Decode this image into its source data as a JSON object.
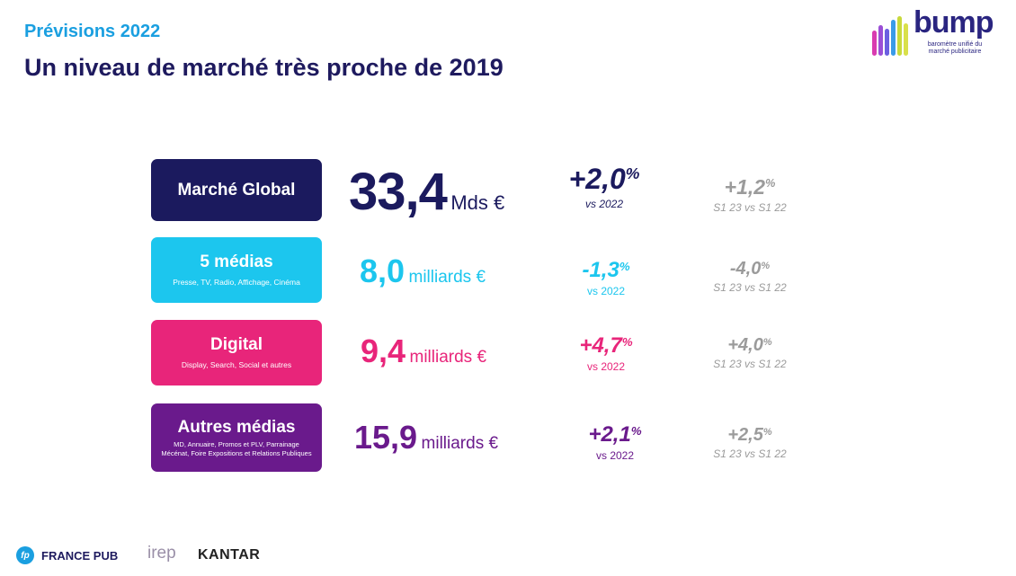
{
  "header": {
    "subtitle": "Prévisions 2022",
    "title": "Un niveau de marché très proche de 2019"
  },
  "logo": {
    "name": "bump",
    "tagline": "baromètre unifié du marché publicitaire",
    "bar_colors": [
      "#d93bb0",
      "#9b4fd6",
      "#6b5fe0",
      "#3a9be8",
      "#c8d93b",
      "#d9e04a"
    ]
  },
  "rows": [
    {
      "label": "Marché Global",
      "sub": "",
      "value": "33,4",
      "unit": "Mds €",
      "growth": "+2,0",
      "growth_sup": "%",
      "growth_ref": "vs 2022",
      "s1": "+1,2",
      "s1_sup": "%",
      "s1_ref": "S1 23 vs S1 22",
      "color": "#1b1a5e"
    },
    {
      "label": "5 médias",
      "sub": "Presse, TV, Radio, Affichage, Cinéma",
      "value": "8,0",
      "unit": "milliards €",
      "growth": "-1,3",
      "growth_sup": "%",
      "growth_ref": "vs 2022",
      "s1": "-4,0",
      "s1_sup": "%",
      "s1_ref": "S1 23 vs S1 22",
      "color": "#1cc6ee"
    },
    {
      "label": "Digital",
      "sub": "Display, Search, Social et autres",
      "value": "9,4",
      "unit": "milliards €",
      "growth": "+4,7",
      "growth_sup": "%",
      "growth_ref": "vs 2022",
      "s1": "+4,0",
      "s1_sup": "%",
      "s1_ref": "S1 23 vs S1 22",
      "color": "#e8257a"
    },
    {
      "label": "Autres médias",
      "sub": "MD, Annuaire, Promos et PLV, Parrainage Mécénat, Foire Expositions et Relations Publiques",
      "value": "15,9",
      "unit": "milliards €",
      "growth": "+2,1",
      "growth_sup": "%",
      "growth_ref": "vs 2022",
      "s1": "+2,5",
      "s1_sup": "%",
      "s1_ref": "S1 23 vs S1 22",
      "color": "#6a1a8c"
    }
  ],
  "footer": {
    "logo1_icon": "fp",
    "logo1": "FRANCE PUB",
    "logo2": "irep",
    "logo3": "KANTAR"
  }
}
